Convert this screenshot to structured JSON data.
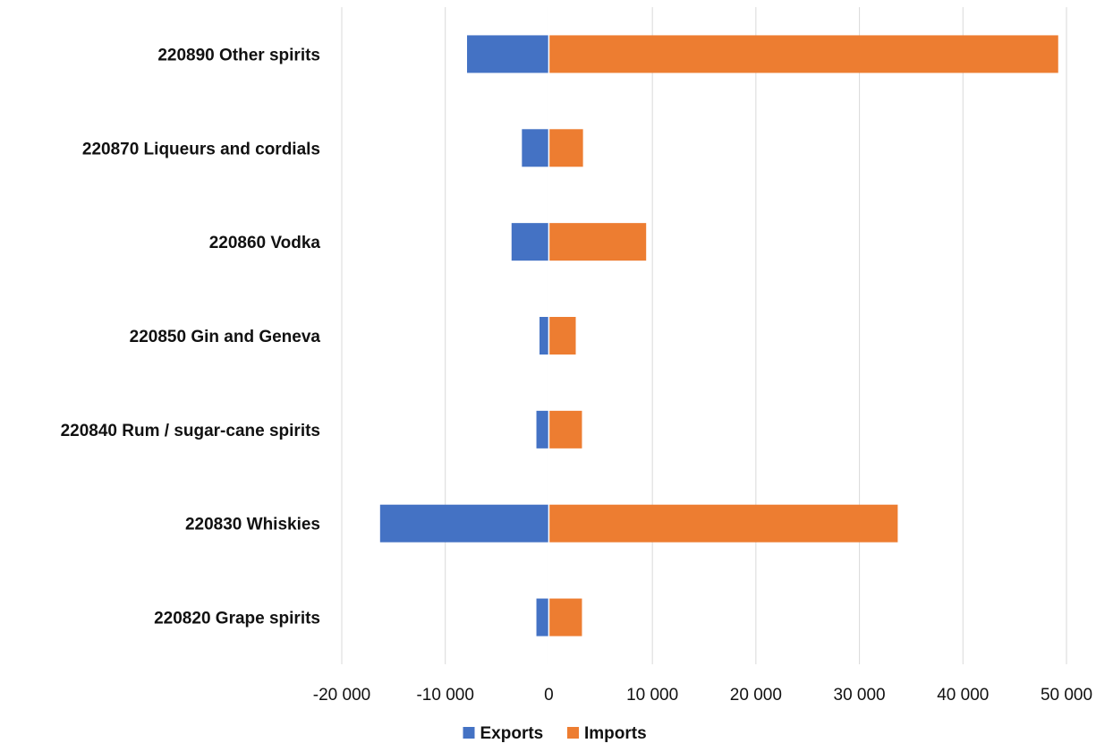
{
  "chart_data": {
    "type": "bar",
    "orientation": "horizontal",
    "stacked": true,
    "categories": [
      "220890 Other spirits",
      "220870 Liqueurs and cordials",
      "220860 Vodka",
      "220850 Gin and Geneva",
      "220840 Rum / sugar-cane spirits",
      "220830 Whiskies",
      "220820 Grape spirits"
    ],
    "series": [
      {
        "name": "Exports",
        "color": "#4472C4",
        "values": [
          -7900,
          -2600,
          -3600,
          -900,
          -1200,
          -16300,
          -1200
        ]
      },
      {
        "name": "Imports",
        "color": "#ED7D31",
        "values": [
          49200,
          3300,
          9400,
          2600,
          3200,
          33700,
          3200
        ]
      }
    ],
    "xlim": [
      -20000,
      50000
    ],
    "xticks": [
      -20000,
      -10000,
      0,
      10000,
      20000,
      30000,
      40000,
      50000
    ],
    "xtick_labels": [
      "-20 000",
      "-10 000",
      "0",
      "10 000",
      "20 000",
      "30 000",
      "40 000",
      "50 000"
    ],
    "grid": true,
    "legend_position": "bottom",
    "title": "",
    "xlabel": "",
    "ylabel": ""
  }
}
